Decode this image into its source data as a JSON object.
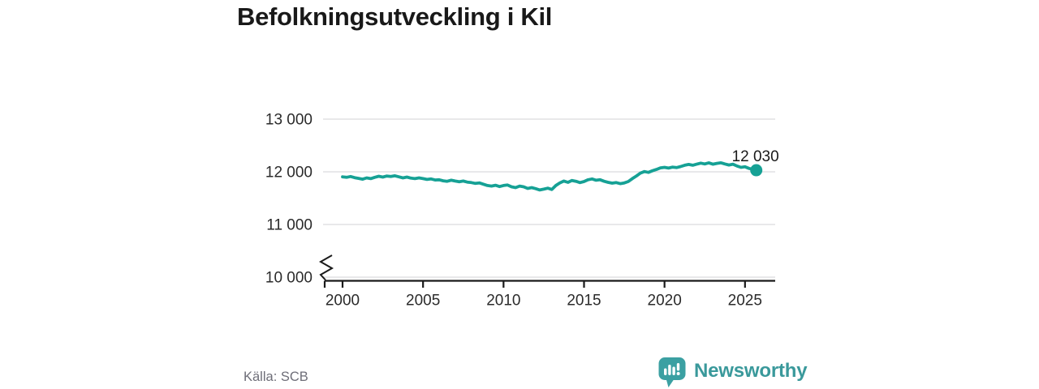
{
  "title": "Befolkningsutveckling i Kil",
  "source": "Källa: SCB",
  "branding": {
    "name": "Newsworthy",
    "icon": "newsworthy-speech-bubble-bar-chart-icon",
    "text_color": "#3a999b",
    "icon_color": "#3ba0a2"
  },
  "chart_data": {
    "type": "line",
    "title": "Befolkningsutveckling i Kil",
    "xlabel": "",
    "ylabel": "",
    "grid": true,
    "y_axis_break": true,
    "legend": "none",
    "line_color": "#16a195",
    "ylim": [
      10000,
      13000
    ],
    "xlim": [
      2000,
      2026
    ],
    "x_ticks": [
      {
        "value": 2000,
        "label": "2000"
      },
      {
        "value": 2005,
        "label": "2005"
      },
      {
        "value": 2010,
        "label": "2010"
      },
      {
        "value": 2015,
        "label": "2015"
      },
      {
        "value": 2020,
        "label": "2020"
      },
      {
        "value": 2025,
        "label": "2025"
      }
    ],
    "y_ticks": [
      {
        "value": 13000,
        "label": "13 000"
      },
      {
        "value": 12000,
        "label": "12 000"
      },
      {
        "value": 11000,
        "label": "11 000"
      },
      {
        "value": 10000,
        "label": "10 000"
      }
    ],
    "end_point": {
      "year": 2025.7,
      "value": 12030,
      "label": "12 030"
    },
    "series": [
      {
        "points": [
          [
            2000.0,
            11905
          ],
          [
            2000.25,
            11895
          ],
          [
            2000.5,
            11910
          ],
          [
            2000.75,
            11890
          ],
          [
            2001.0,
            11875
          ],
          [
            2001.25,
            11860
          ],
          [
            2001.5,
            11885
          ],
          [
            2001.75,
            11870
          ],
          [
            2002.0,
            11895
          ],
          [
            2002.25,
            11915
          ],
          [
            2002.5,
            11900
          ],
          [
            2002.75,
            11920
          ],
          [
            2003.0,
            11910
          ],
          [
            2003.25,
            11925
          ],
          [
            2003.5,
            11905
          ],
          [
            2003.75,
            11885
          ],
          [
            2004.0,
            11900
          ],
          [
            2004.25,
            11880
          ],
          [
            2004.5,
            11870
          ],
          [
            2004.75,
            11885
          ],
          [
            2005.0,
            11870
          ],
          [
            2005.25,
            11855
          ],
          [
            2005.5,
            11865
          ],
          [
            2005.75,
            11845
          ],
          [
            2006.0,
            11850
          ],
          [
            2006.25,
            11830
          ],
          [
            2006.5,
            11820
          ],
          [
            2006.75,
            11840
          ],
          [
            2007.0,
            11825
          ],
          [
            2007.25,
            11810
          ],
          [
            2007.5,
            11825
          ],
          [
            2007.75,
            11805
          ],
          [
            2008.0,
            11795
          ],
          [
            2008.25,
            11780
          ],
          [
            2008.5,
            11790
          ],
          [
            2008.75,
            11765
          ],
          [
            2009.0,
            11740
          ],
          [
            2009.25,
            11730
          ],
          [
            2009.5,
            11745
          ],
          [
            2009.75,
            11720
          ],
          [
            2010.0,
            11740
          ],
          [
            2010.25,
            11750
          ],
          [
            2010.5,
            11715
          ],
          [
            2010.75,
            11700
          ],
          [
            2011.0,
            11730
          ],
          [
            2011.25,
            11715
          ],
          [
            2011.5,
            11685
          ],
          [
            2011.75,
            11700
          ],
          [
            2012.0,
            11680
          ],
          [
            2012.25,
            11655
          ],
          [
            2012.5,
            11670
          ],
          [
            2012.75,
            11690
          ],
          [
            2013.0,
            11665
          ],
          [
            2013.25,
            11740
          ],
          [
            2013.5,
            11790
          ],
          [
            2013.75,
            11825
          ],
          [
            2014.0,
            11800
          ],
          [
            2014.25,
            11835
          ],
          [
            2014.5,
            11820
          ],
          [
            2014.75,
            11795
          ],
          [
            2015.0,
            11815
          ],
          [
            2015.25,
            11850
          ],
          [
            2015.5,
            11865
          ],
          [
            2015.75,
            11840
          ],
          [
            2016.0,
            11850
          ],
          [
            2016.25,
            11820
          ],
          [
            2016.5,
            11800
          ],
          [
            2016.75,
            11785
          ],
          [
            2017.0,
            11795
          ],
          [
            2017.25,
            11775
          ],
          [
            2017.5,
            11790
          ],
          [
            2017.75,
            11815
          ],
          [
            2018.0,
            11870
          ],
          [
            2018.25,
            11920
          ],
          [
            2018.5,
            11975
          ],
          [
            2018.75,
            12005
          ],
          [
            2019.0,
            11990
          ],
          [
            2019.25,
            12020
          ],
          [
            2019.5,
            12045
          ],
          [
            2019.75,
            12075
          ],
          [
            2020.0,
            12085
          ],
          [
            2020.25,
            12070
          ],
          [
            2020.5,
            12090
          ],
          [
            2020.75,
            12080
          ],
          [
            2021.0,
            12100
          ],
          [
            2021.25,
            12125
          ],
          [
            2021.5,
            12140
          ],
          [
            2021.75,
            12125
          ],
          [
            2022.0,
            12145
          ],
          [
            2022.25,
            12165
          ],
          [
            2022.5,
            12150
          ],
          [
            2022.75,
            12170
          ],
          [
            2023.0,
            12145
          ],
          [
            2023.25,
            12160
          ],
          [
            2023.5,
            12170
          ],
          [
            2023.75,
            12150
          ],
          [
            2024.0,
            12130
          ],
          [
            2024.25,
            12145
          ],
          [
            2024.5,
            12110
          ],
          [
            2024.75,
            12085
          ],
          [
            2025.0,
            12095
          ],
          [
            2025.25,
            12065
          ],
          [
            2025.5,
            12045
          ],
          [
            2025.7,
            12030
          ]
        ]
      }
    ]
  }
}
